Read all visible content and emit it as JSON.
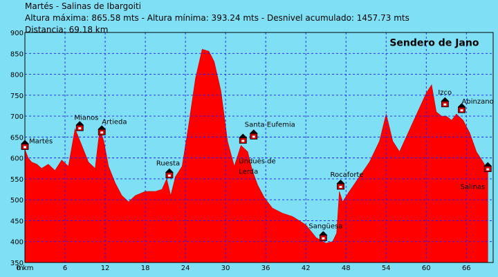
{
  "header": {
    "route": "Martés - Salinas de Ibargoiti",
    "stats": "Altura máxima: 865.58 mts - Altura mínima: 393.24 mts - Desnivel acumulado: 1457.73 mts",
    "distance": "Distancia: 69.18 km"
  },
  "chart_data": {
    "type": "area",
    "title": "Sendero de Jano",
    "xunit": "km",
    "yunit": "m",
    "xlim": [
      0,
      70
    ],
    "ylim": [
      350,
      900
    ],
    "xticks": [
      0,
      6,
      12,
      18,
      24,
      30,
      36,
      42,
      48,
      54,
      60,
      66
    ],
    "yticks": [
      350,
      400,
      450,
      500,
      550,
      600,
      650,
      700,
      750,
      800,
      850,
      900
    ],
    "grid": true,
    "fill_color": "#ff0000",
    "profile": {
      "x": [
        0,
        0.5,
        1,
        1.8,
        2.5,
        3.5,
        4.5,
        5.5,
        6.5,
        7.5,
        8.5,
        9.5,
        10.5,
        11.2,
        11.8,
        12.5,
        13.5,
        14.5,
        15.5,
        16.5,
        18,
        19.5,
        20.5,
        21.2,
        21.8,
        22.5,
        23.5,
        24.5,
        25.5,
        26.5,
        27.5,
        28.3,
        29.3,
        30.3,
        31.3,
        32.3,
        33.3,
        34,
        34.8,
        35.8,
        37,
        38.5,
        40,
        42,
        43.5,
        45,
        46,
        46.6,
        47,
        47.5,
        48.5,
        50,
        51.5,
        53,
        54,
        55,
        56,
        57,
        58,
        59,
        60,
        60.8,
        61.5,
        62.3,
        63,
        63.8,
        64.5,
        65.5,
        66.5,
        67.5,
        68.5,
        69.2
      ],
      "y": [
        620,
        600,
        590,
        585,
        575,
        585,
        570,
        595,
        580,
        670,
        630,
        590,
        575,
        670,
        640,
        580,
        540,
        510,
        495,
        510,
        520,
        520,
        525,
        550,
        510,
        555,
        580,
        680,
        790,
        860,
        855,
        830,
        760,
        640,
        580,
        630,
        615,
        570,
        535,
        505,
        480,
        468,
        460,
        440,
        410,
        396,
        400,
        420,
        520,
        495,
        520,
        555,
        590,
        640,
        705,
        640,
        615,
        650,
        685,
        720,
        755,
        775,
        710,
        700,
        700,
        690,
        705,
        690,
        660,
        615,
        590,
        570
      ]
    },
    "waypoints": [
      {
        "name": "Martés",
        "x": 0,
        "y": 620
      },
      {
        "name": "Mianos",
        "x": 8.2,
        "y": 665
      },
      {
        "name": "Artieda",
        "x": 11.5,
        "y": 655
      },
      {
        "name": "Ruesta",
        "x": 21.6,
        "y": 552
      },
      {
        "name": "Undués de Lerda",
        "x": 32.6,
        "y": 635
      },
      {
        "name": "Santa Eufemia",
        "x": 34.2,
        "y": 645
      },
      {
        "name": "Sangüesa",
        "x": 44.6,
        "y": 402
      },
      {
        "name": "Rocaforte",
        "x": 47.2,
        "y": 525
      },
      {
        "name": "Izco",
        "x": 62.8,
        "y": 722
      },
      {
        "name": "Abinzano",
        "x": 65.3,
        "y": 708
      },
      {
        "name": "Salinas",
        "x": 69.2,
        "y": 567
      }
    ]
  }
}
